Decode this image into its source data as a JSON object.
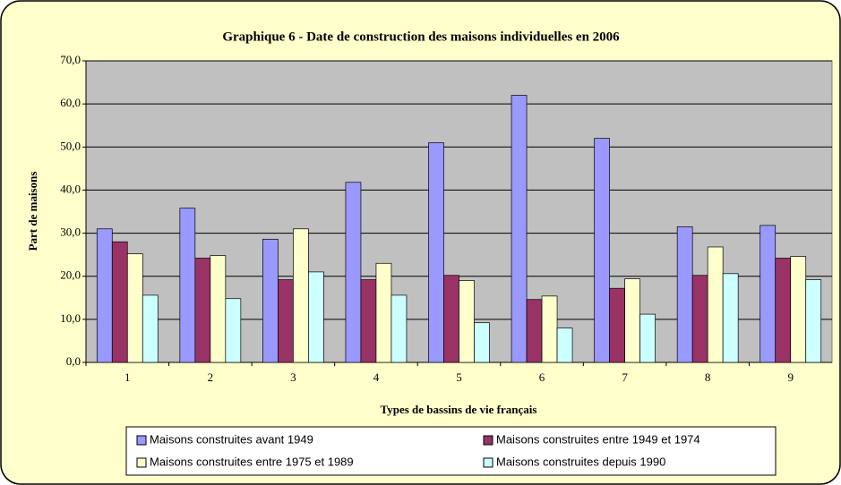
{
  "chart_data": {
    "type": "bar",
    "title": "Graphique 6 - Date de construction des maisons individuelles en 2006",
    "x_label": "Types de bassins de vie français",
    "y_label": "Part de maisons",
    "categories": [
      "1",
      "2",
      "3",
      "4",
      "5",
      "6",
      "7",
      "8",
      "9"
    ],
    "series": [
      {
        "name": "Maisons construites avant 1949",
        "color": "#9999ff",
        "values": [
          31,
          35.8,
          28.6,
          41.8,
          51,
          62,
          52,
          31.5,
          31.8
        ]
      },
      {
        "name": "Maisons construites entre 1949 et 1974",
        "color": "#993366",
        "values": [
          28,
          24.2,
          19.2,
          19.2,
          20.2,
          14.6,
          17.2,
          20.2,
          24.2
        ]
      },
      {
        "name": "Maisons construites entre 1975 et 1989",
        "color": "#ffffcc",
        "values": [
          25.2,
          24.8,
          31,
          23,
          19,
          15.4,
          19.4,
          26.8,
          24.6
        ]
      },
      {
        "name": "Maisons construites depuis 1990",
        "color": "#ccffff",
        "values": [
          15.6,
          14.8,
          21,
          15.6,
          9.2,
          8,
          11.2,
          20.6,
          19.2
        ]
      }
    ],
    "ylim": [
      0,
      70
    ],
    "yticks": [
      {
        "value": 0,
        "label": "0,0"
      },
      {
        "value": 10,
        "label": "10,0"
      },
      {
        "value": 20,
        "label": "20,0"
      },
      {
        "value": 30,
        "label": "30,0"
      },
      {
        "value": 40,
        "label": "40,0"
      },
      {
        "value": 50,
        "label": "50,0"
      },
      {
        "value": 60,
        "label": "60,0"
      },
      {
        "value": 70,
        "label": "70,0"
      }
    ],
    "grid": true
  }
}
